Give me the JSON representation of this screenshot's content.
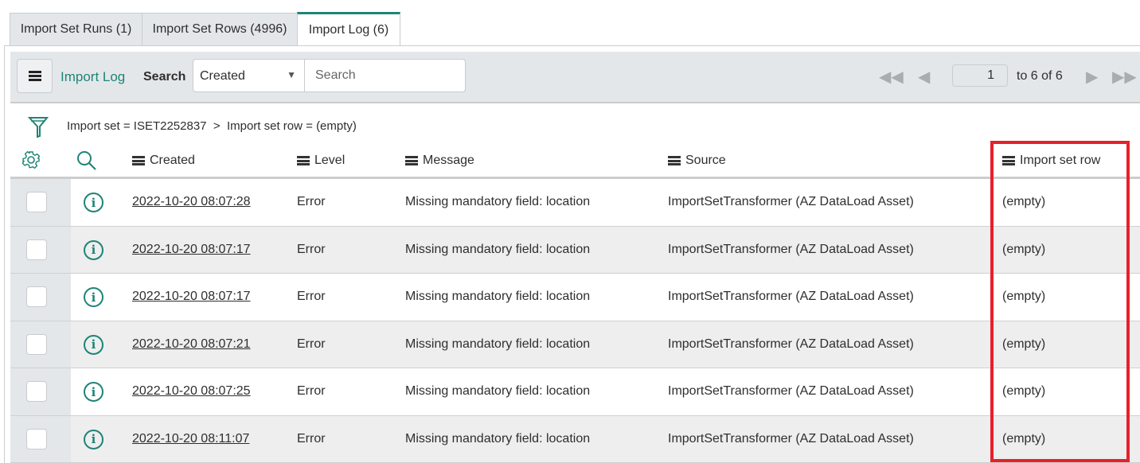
{
  "tabs": [
    {
      "label": "Import Set Runs (1)"
    },
    {
      "label": "Import Set Rows (4996)"
    },
    {
      "label": "Import Log (6)",
      "active": true
    }
  ],
  "toolbar": {
    "title": "Import Log",
    "search_label": "Search",
    "search_field": "Created",
    "search_placeholder": "Search"
  },
  "pager": {
    "page": "1",
    "range": "to 6 of 6"
  },
  "filter": {
    "breadcrumb": "Import set = ISET2252837  >  Import set row = (empty)"
  },
  "columns": [
    "Created",
    "Level",
    "Message",
    "Source",
    "Import set row"
  ],
  "rows": [
    {
      "created": "2022-10-20 08:07:28",
      "level": "Error",
      "message": "Missing mandatory field: location",
      "source": "ImportSetTransformer (AZ DataLoad Asset)",
      "import_set_row": "(empty)"
    },
    {
      "created": "2022-10-20 08:07:17",
      "level": "Error",
      "message": "Missing mandatory field: location",
      "source": "ImportSetTransformer (AZ DataLoad Asset)",
      "import_set_row": "(empty)"
    },
    {
      "created": "2022-10-20 08:07:17",
      "level": "Error",
      "message": "Missing mandatory field: location",
      "source": "ImportSetTransformer (AZ DataLoad Asset)",
      "import_set_row": "(empty)"
    },
    {
      "created": "2022-10-20 08:07:21",
      "level": "Error",
      "message": "Missing mandatory field: location",
      "source": "ImportSetTransformer (AZ DataLoad Asset)",
      "import_set_row": "(empty)"
    },
    {
      "created": "2022-10-20 08:07:25",
      "level": "Error",
      "message": "Missing mandatory field: location",
      "source": "ImportSetTransformer (AZ DataLoad Asset)",
      "import_set_row": "(empty)"
    },
    {
      "created": "2022-10-20 08:11:07",
      "level": "Error",
      "message": "Missing mandatory field: location",
      "source": "ImportSetTransformer (AZ DataLoad Asset)",
      "import_set_row": "(empty)"
    }
  ],
  "colors": {
    "accent": "#1f8476",
    "highlight": "#e8202a",
    "toolbar_bg": "#e4e7ea"
  }
}
